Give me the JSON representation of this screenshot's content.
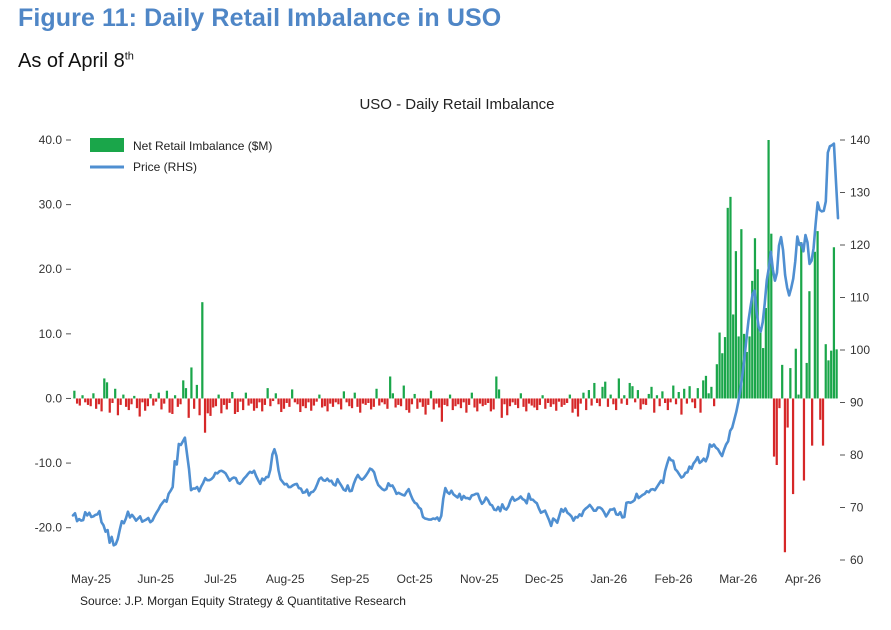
{
  "figure": {
    "title": "Figure 11: Daily Retail Imbalance in USO",
    "subtitle_main": "As of April 8",
    "subtitle_sup": "th",
    "source": "Source: J.P. Morgan Equity Strategy & Quantitative Research"
  },
  "chart_data": {
    "type": "bar+line",
    "title": "USO - Daily Retail Imbalance",
    "months": [
      "May-25",
      "Jun-25",
      "Jul-25",
      "Aug-25",
      "Sep-25",
      "Oct-25",
      "Nov-25",
      "Dec-25",
      "Jan-26",
      "Feb-26",
      "Mar-26",
      "Apr-26"
    ],
    "ylim_left": [
      -25,
      40
    ],
    "yticks_left": [
      40,
      30,
      20,
      10,
      0,
      -10,
      -20
    ],
    "ytick_labels_left": [
      "40.0",
      "30.0",
      "20.0",
      "10.0",
      "0.0",
      "-10.0",
      "-20.0"
    ],
    "ylim_right": [
      60,
      140
    ],
    "yticks_right": [
      140,
      130,
      120,
      110,
      100,
      90,
      80,
      70,
      60
    ],
    "ytick_labels_right": [
      "140",
      "130",
      "120",
      "110",
      "100",
      "90",
      "80",
      "70",
      "60"
    ],
    "legend": {
      "position": "top-left",
      "bar_label": "Net Retail Imbalance ($M)",
      "line_label": "Price (RHS)"
    },
    "colors": {
      "positive": "#1aa64a",
      "negative": "#d62728",
      "line": "#4f8fd1"
    },
    "bars": {
      "name": "Net Retail Imbalance ($M)",
      "values": [
        1.2,
        -0.8,
        -1.1,
        0.5,
        -0.6,
        -1.0,
        -1.2,
        0.8,
        -1.6,
        -0.9,
        -2.0,
        3.1,
        2.5,
        -2.2,
        -0.7,
        1.5,
        -2.6,
        -1.0,
        0.6,
        -1.3,
        -1.8,
        -0.9,
        0.4,
        -1.5,
        -2.8,
        -0.6,
        -1.9,
        -1.2,
        0.7,
        -1.1,
        -0.5,
        0.9,
        -1.7,
        -0.8,
        1.2,
        -2.2,
        -2.4,
        0.5,
        -1.3,
        -0.9,
        2.8,
        1.6,
        -3.0,
        4.8,
        -1.6,
        2.1,
        -2.6,
        14.9,
        -5.3,
        -2.3,
        -2.7,
        -1.4,
        -1.2,
        0.6,
        -2.3,
        -1.0,
        -1.7,
        -0.7,
        1.0,
        -2.4,
        -2.1,
        -0.5,
        -1.8,
        0.9,
        -1.1,
        -0.8,
        -1.9,
        -1.5,
        -0.6,
        -2.0,
        -1.0,
        1.6,
        -1.2,
        -0.4,
        0.8,
        -0.9,
        -2.1,
        -1.6,
        -0.7,
        -1.3,
        1.4,
        -0.6,
        -0.9,
        -2.1,
        -1.2,
        -1.5,
        -0.6,
        -1.9,
        -1.1,
        -0.5,
        0.6,
        -1.4,
        -1.2,
        -2.0,
        -0.8,
        -1.3,
        -0.6,
        -0.9,
        -1.7,
        1.1,
        -0.6,
        -1.2,
        -1.5,
        0.9,
        -1.3,
        -2.2,
        -0.8,
        -1.0,
        -0.7,
        -1.7,
        -1.3,
        1.5,
        -1.1,
        -0.6,
        -0.9,
        -1.6,
        3.4,
        0.8,
        -1.4,
        -1.0,
        -1.2,
        2.0,
        -1.8,
        -2.2,
        -0.9,
        0.7,
        -1.6,
        -0.6,
        -1.3,
        -2.5,
        -1.0,
        1.2,
        -1.7,
        -0.8,
        -1.4,
        -3.6,
        -1.0,
        -1.2,
        0.6,
        -1.8,
        -1.2,
        -0.9,
        -1.5,
        -0.6,
        -2.2,
        -1.0,
        0.9,
        -1.4,
        -2.0,
        -0.8,
        -1.2,
        -1.0,
        -0.7,
        -2.0,
        -1.7,
        3.4,
        1.4,
        -3.0,
        -0.9,
        -2.6,
        -1.2,
        -0.6,
        -1.0,
        -1.5,
        0.8,
        -1.3,
        -2.0,
        -0.8,
        -1.1,
        -1.4,
        -1.8,
        -1.0,
        0.5,
        -1.6,
        -0.7,
        -1.3,
        -0.9,
        -1.9,
        -0.5,
        -1.3,
        -1.0,
        -0.7,
        0.6,
        -2.2,
        -1.6,
        -2.8,
        -0.8,
        0.9,
        -1.8,
        1.3,
        -1.1,
        2.4,
        -0.7,
        -1.2,
        1.8,
        2.6,
        -1.3,
        0.6,
        -0.9,
        -1.8,
        3.1,
        -0.8,
        0.5,
        -1.0,
        2.4,
        1.9,
        -0.6,
        1.3,
        -1.7,
        -0.9,
        -1.0,
        0.7,
        1.8,
        -2.2,
        0.5,
        -1.2,
        1.1,
        -0.7,
        -1.8,
        -0.6,
        2.0,
        -0.9,
        1.0,
        -2.5,
        1.5,
        -0.8,
        1.9,
        -0.6,
        -1.5,
        1.6,
        -2.2,
        2.8,
        3.5,
        0.8,
        1.8,
        -1.2,
        5.3,
        10.2,
        7.0,
        9.5,
        29.5,
        31.2,
        13.0,
        22.8,
        9.6,
        26.2,
        10.0,
        7.2,
        9.6,
        18.2,
        24.8,
        20.0,
        11.0,
        7.8,
        14.0,
        40.0,
        25.5,
        -9.0,
        -10.3,
        -1.5,
        5.2,
        -23.8,
        -4.5,
        4.7,
        -14.8,
        7.7,
        0.6,
        24.2,
        -12.7,
        5.5,
        16.6,
        -7.3,
        22.7,
        25.9,
        -3.3,
        -7.3,
        8.4,
        5.9,
        7.4,
        23.4,
        7.6
      ]
    },
    "line": {
      "name": "Price (RHS)",
      "values": [
        68.5,
        68.9,
        67.4,
        67.8,
        67.5,
        67.6,
        69.1,
        68.5,
        69.0,
        68.2,
        68.3,
        68.6,
        68.7,
        69.3,
        67.2,
        66.6,
        65.4,
        65.7,
        63.3,
        64.4,
        62.8,
        63.0,
        64.0,
        65.8,
        67.4,
        67.0,
        67.9,
        69.2,
        68.1,
        68.6,
        68.1,
        67.5,
        67.9,
        68.3,
        67.3,
        67.5,
        67.7,
        68.0,
        67.2,
        67.5,
        68.3,
        69.0,
        69.6,
        70.4,
        70.9,
        71.4,
        71.1,
        72.6,
        73.2,
        73.9,
        78.8,
        78.2,
        82.1,
        81.9,
        82.6,
        83.3,
        80.3,
        77.4,
        73.3,
        73.6,
        73.6,
        73.9,
        73.1,
        74.0,
        74.7,
        75.6,
        75.2,
        75.2,
        75.4,
        75.8,
        76.6,
        76.5,
        76.9,
        77.0,
        76.8,
        76.5,
        75.8,
        75.1,
        75.5,
        75.7,
        75.6,
        74.7,
        74.5,
        74.9,
        75.5,
        75.9,
        76.4,
        76.8,
        76.6,
        77.0,
        76.0,
        75.2,
        74.5,
        75.5,
        75.2,
        75.8,
        75.8,
        77.2,
        80.1,
        81.1,
        79.8,
        77.1,
        75.4,
        74.9,
        74.4,
        74.5,
        73.9,
        73.9,
        74.2,
        74.4,
        74.5,
        73.7,
        73.6,
        72.8,
        72.9,
        73.4,
        72.3,
        72.9,
        73.0,
        73.5,
        74.4,
        75.4,
        75.7,
        75.2,
        75.1,
        75.5,
        75.0,
        75.1,
        74.4,
        74.2,
        75.4,
        74.7,
        74.1,
        73.4,
        73.2,
        74.2,
        73.1,
        73.2,
        74.5,
        75.5,
        76.2,
        75.6,
        75.3,
        75.6,
        76.1,
        76.7,
        77.4,
        77.2,
        76.7,
        75.3,
        74.3,
        73.9,
        73.5,
        73.3,
        73.5,
        74.6,
        74.1,
        74.2,
        73.5,
        72.6,
        72.8,
        72.6,
        72.4,
        72.3,
        73.0,
        73.5,
        72.4,
        71.5,
        70.9,
        70.7,
        70.0,
        69.7,
        68.2,
        67.9,
        67.8,
        67.7,
        67.7,
        67.9,
        67.8,
        68.1,
        67.5,
        68.4,
        71.7,
        73.7,
        72.9,
        72.6,
        73.2,
        72.5,
        72.2,
        71.9,
        72.6,
        71.5,
        72.2,
        71.8,
        71.8,
        71.6,
        72.3,
        72.4,
        72.6,
        72.6,
        71.5,
        70.7,
        71.1,
        71.9,
        71.4,
        70.6,
        70.4,
        69.6,
        69.5,
        70.1,
        69.3,
        70.6,
        69.8,
        69.6,
        70.2,
        71.3,
        72.0,
        71.3,
        71.5,
        71.7,
        72.1,
        71.6,
        71.4,
        70.8,
        72.6,
        71.5,
        71.5,
        71.1,
        70.8,
        69.8,
        69.0,
        69.2,
        69.4,
        68.5,
        67.6,
        66.5,
        67.9,
        67.6,
        67.1,
        68.4,
        69.7,
        69.2,
        69.8,
        69.0,
        68.7,
        68.3,
        67.5,
        68.2,
        68.1,
        68.7,
        68.4,
        69.4,
        69.8,
        70.1,
        70.5,
        70.0,
        69.4,
        69.4,
        70.0,
        70.0,
        69.7,
        69.1,
        68.3,
        68.9,
        69.6,
        69.6,
        69.8,
        68.7,
        68.6,
        69.1,
        68.1,
        68.2,
        70.9,
        71.0,
        70.9,
        71.1,
        71.4,
        72.6,
        71.8,
        72.1,
        72.4,
        72.6,
        73.1,
        72.9,
        73.4,
        73.5,
        73.3,
        73.9,
        74.5,
        75.1,
        74.7,
        76.9,
        78.3,
        79.5,
        79.0,
        78.9,
        77.3,
        76.9,
        76.3,
        75.7,
        75.9,
        76.6,
        76.7,
        77.8,
        77.4,
        78.4,
        78.9,
        79.6,
        78.5,
        78.8,
        79.3,
        78.8,
        79.8,
        82.0,
        81.6,
        82.0,
        81.4,
        81.1,
        80.4,
        79.8,
        81.0,
        82.0,
        82.6,
        84.6,
        85.2,
        86.7,
        88.2,
        90.1,
        92.4,
        95.2,
        98.4,
        102.1,
        105.6,
        108.2,
        110.6,
        111.3,
        107.1,
        104.4,
        103.5,
        105.3,
        108.9,
        113.3,
        115.6,
        118.7,
        115.3,
        113.2,
        114.7,
        119.9,
        121.5,
        119.0,
        114.3,
        111.9,
        110.4,
        111.8,
        113.6,
        116.9,
        121.6,
        120.0,
        120.3,
        118.8,
        121.9,
        120.5,
        116.4,
        117.0,
        119.4,
        124.0,
        128.1,
        126.7,
        126.4,
        126.5,
        128.3,
        137.6,
        138.8,
        139.0,
        139.3,
        132.1,
        125.1
      ]
    }
  }
}
